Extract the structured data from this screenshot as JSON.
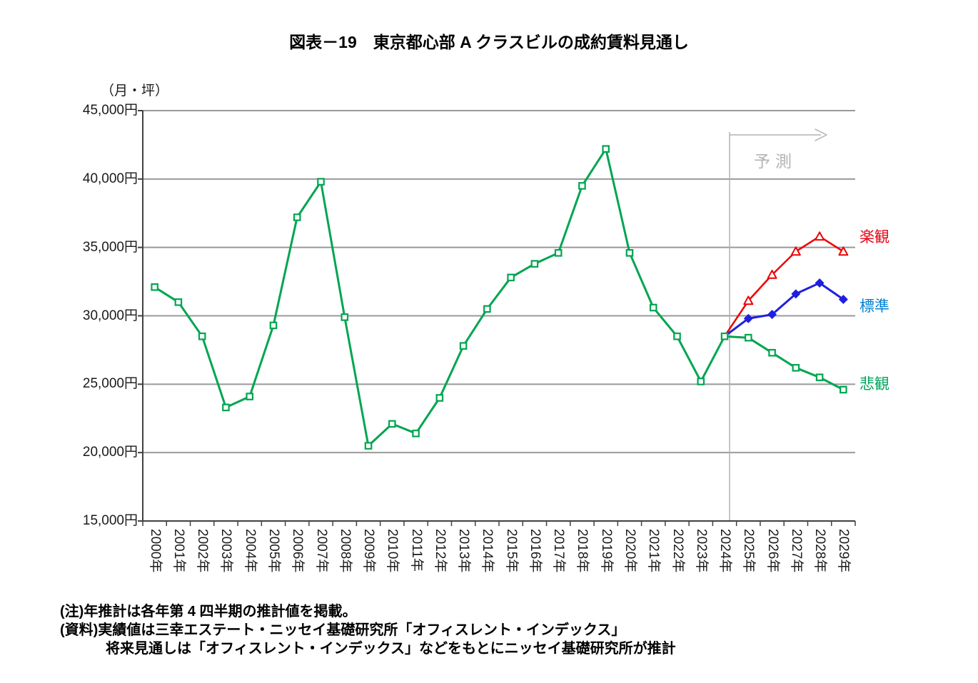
{
  "chart_data": {
    "type": "line",
    "title": "図表－19　東京都心部 A クラスビルの成約賃料見通し",
    "unit_label": "（月・坪）",
    "y_axis": {
      "min": 15000,
      "max": 45000,
      "step": 5000,
      "tick_values": [
        45000,
        40000,
        35000,
        30000,
        25000,
        20000,
        15000
      ],
      "tick_labels": [
        "45,000円",
        "40,000円",
        "35,000円",
        "30,000円",
        "25,000円",
        "20,000円",
        "15,000円"
      ],
      "grid": true
    },
    "x_categories": [
      "2000年",
      "2001年",
      "2002年",
      "2003年",
      "2004年",
      "2005年",
      "2006年",
      "2007年",
      "2008年",
      "2009年",
      "2010年",
      "2011年",
      "2012年",
      "2013年",
      "2014年",
      "2015年",
      "2016年",
      "2017年",
      "2018年",
      "2019年",
      "2020年",
      "2021年",
      "2022年",
      "2023年",
      "2024年",
      "2025年",
      "2026年",
      "2027年",
      "2028年",
      "2029年"
    ],
    "forecast_start_category": "2024年",
    "series": [
      {
        "id": "actual",
        "name": "実績",
        "color": "#00a551",
        "marker": "square-open",
        "start_index": 0,
        "values": [
          32100,
          31000,
          28500,
          23300,
          24100,
          29300,
          37200,
          39800,
          29900,
          20500,
          22100,
          21400,
          24000,
          27800,
          30500,
          32800,
          33800,
          34600,
          39500,
          42200,
          34600,
          30600,
          28500,
          25200,
          28500
        ]
      },
      {
        "id": "optimistic",
        "name": "楽観",
        "color": "#ee0000",
        "marker": "triangle-open",
        "start_index": 24,
        "values": [
          28500,
          31100,
          33000,
          34700,
          35800,
          34700
        ]
      },
      {
        "id": "standard",
        "name": "標準",
        "color": "#1f1fe0",
        "marker": "diamond-filled",
        "start_index": 24,
        "values": [
          28500,
          29800,
          30100,
          31600,
          32400,
          31200
        ]
      },
      {
        "id": "pessimistic",
        "name": "悲観",
        "color": "#00a551",
        "marker": "square-open",
        "start_index": 24,
        "values": [
          28500,
          28400,
          27300,
          26200,
          25500,
          24600
        ]
      }
    ],
    "annotations": {
      "forecast_label": "予測"
    },
    "series_labels": [
      {
        "text": "楽観",
        "color": "#e60012"
      },
      {
        "text": "標準",
        "color": "#0080d2"
      },
      {
        "text": "悲観",
        "color": "#00a45c"
      }
    ],
    "legend_position": "right-of-line-ends"
  },
  "notes": {
    "line1": "(注)年推計は各年第 4 四半期の推計値を掲載。",
    "line2": "(資料)実績値は三幸エステート・ニッセイ基礎研究所「オフィスレント・インデックス」",
    "line3": "将来見通しは「オフィスレント・インデックス」などをもとにニッセイ基礎研究所が推計"
  }
}
